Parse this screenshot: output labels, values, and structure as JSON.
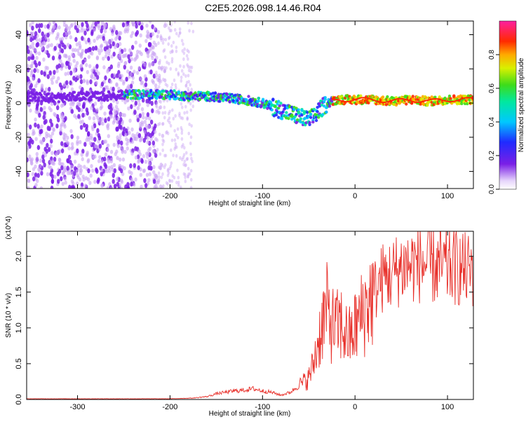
{
  "figure": {
    "title": "C2E5.2026.098.14.46.R04"
  },
  "colors": {
    "line": "#e8302a",
    "dots": "#7a1fe6",
    "dots_light": "#c9a3f3"
  },
  "chart_data": [
    {
      "type": "heatmap",
      "xlabel": "Height of straight line (km)",
      "ylabel": "Frequency (Hz)",
      "xlim": [
        -355,
        128
      ],
      "ylim": [
        -50,
        48
      ],
      "xticks": [
        -300,
        -200,
        -100,
        0,
        100
      ],
      "xtick_labels": [
        "-300",
        "-200",
        "-100",
        "0",
        "100"
      ],
      "yticks": [
        -40,
        -20,
        0,
        20,
        40
      ],
      "ytick_labels": [
        "-40",
        "-20",
        "0",
        "20",
        "40"
      ],
      "grid": false,
      "colorbar": {
        "label": "Normalized spectral amplitude",
        "range": [
          0,
          1
        ],
        "ticks": [
          0.0,
          0.2,
          0.4,
          0.6,
          0.8
        ],
        "tick_labels": [
          "0.0",
          "0.2",
          "0.4",
          "0.6",
          "0.8"
        ],
        "colormap": "rainbow (white-violet-blue-cyan-green-yellow-red-magenta)"
      },
      "ridge": {
        "description": "dominant frequency band vs height",
        "x": [
          -355,
          -320,
          -300,
          -270,
          -250,
          -220,
          -200,
          -180,
          -160,
          -140,
          -120,
          -100,
          -85,
          -70,
          -60,
          -50,
          -45,
          -40,
          -30,
          -20,
          0,
          20,
          40,
          60,
          80,
          100,
          120,
          128
        ],
        "y": [
          4,
          3,
          4,
          4,
          5,
          5,
          5,
          4,
          4,
          3,
          2,
          0,
          -3,
          -6,
          -8,
          -10,
          -8,
          -5,
          0,
          2,
          2,
          2,
          1,
          2,
          1,
          2,
          2,
          2
        ]
      }
    },
    {
      "type": "line",
      "xlabel": "Height of straight line (km)",
      "ylabel": "SNR (10 * v/v)",
      "y_multiplier": "(x10^4)",
      "xlim": [
        -355,
        128
      ],
      "ylim": [
        0,
        2.35
      ],
      "xticks": [
        -300,
        -200,
        -100,
        0,
        100
      ],
      "xtick_labels": [
        "-300",
        "-200",
        "-100",
        "0",
        "100"
      ],
      "yticks": [
        0.0,
        0.5,
        1.0,
        1.5,
        2.0
      ],
      "ytick_labels": [
        "0.0",
        "0.5",
        "1.0",
        "1.5",
        "2.0"
      ],
      "grid": false,
      "series": [
        {
          "x": [
            -355,
            -300,
            -250,
            -200,
            -175,
            -160,
            -150,
            -140,
            -130,
            -120,
            -110,
            -100,
            -90,
            -80,
            -70,
            -60,
            -50,
            -45,
            -40,
            -35,
            -30,
            -25,
            -20,
            -15,
            -10,
            -5,
            0,
            10,
            20,
            30,
            40,
            50,
            60,
            70,
            80,
            90,
            100,
            110,
            120,
            128
          ],
          "y": [
            0.01,
            0.01,
            0.01,
            0.01,
            0.02,
            0.04,
            0.08,
            0.1,
            0.12,
            0.13,
            0.15,
            0.12,
            0.1,
            0.06,
            0.1,
            0.2,
            0.3,
            0.5,
            0.8,
            1.1,
            1.25,
            1.05,
            1.0,
            1.05,
            0.9,
            0.85,
            1.0,
            1.25,
            1.5,
            1.7,
            1.75,
            1.85,
            1.88,
            1.9,
            1.88,
            1.85,
            1.85,
            1.85,
            1.8,
            1.8
          ]
        }
      ]
    }
  ]
}
